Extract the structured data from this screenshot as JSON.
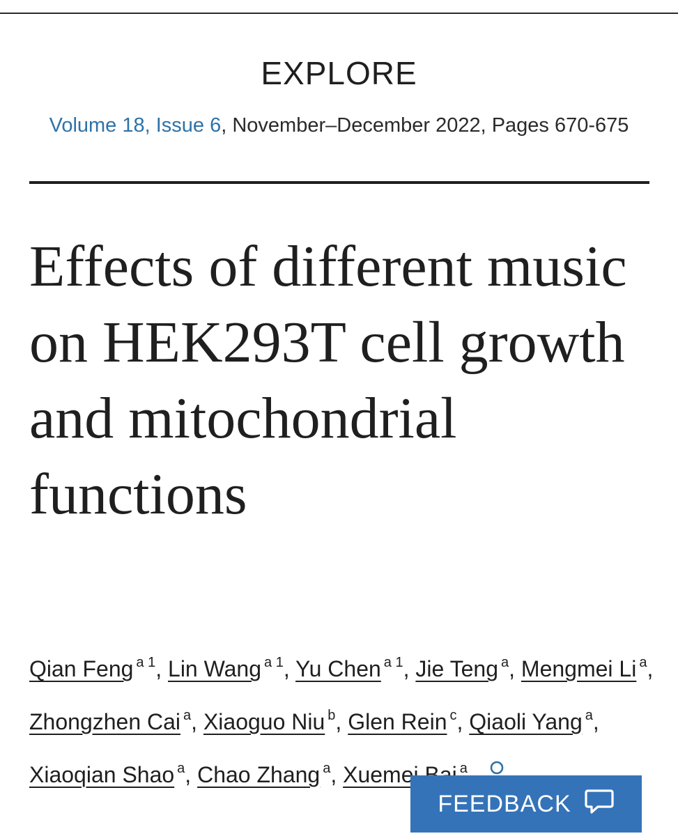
{
  "journal": {
    "name": "EXPLORE"
  },
  "issue": {
    "volume_link": "Volume 18, Issue 6",
    "rest": ", November–December 2022, Pages 670-675"
  },
  "article": {
    "title": "Effects of different music on HEK293T cell growth and mitochondrial functions"
  },
  "authors": [
    {
      "name": "Qian Feng",
      "aff": "a 1"
    },
    {
      "name": "Lin Wang",
      "aff": "a 1"
    },
    {
      "name": "Yu Chen",
      "aff": "a 1"
    },
    {
      "name": "Jie Teng",
      "aff": "a"
    },
    {
      "name": "Mengmei Li",
      "aff": "a"
    },
    {
      "name": "Zhongzhen Cai",
      "aff": "a"
    },
    {
      "name": "Xiaoguo Niu",
      "aff": "b"
    },
    {
      "name": "Glen Rein",
      "aff": "c"
    },
    {
      "name": "Qiaoli Yang",
      "aff": "a"
    },
    {
      "name": "Xiaoqian Shao",
      "aff": "a"
    },
    {
      "name": "Chao Zhang",
      "aff": "a"
    },
    {
      "name": "Xuemei Bai",
      "aff": "a"
    }
  ],
  "author_icon": "person-icon",
  "feedback": {
    "label": "FEEDBACK",
    "icon": "speech-bubble-icon",
    "color": "#3573b8"
  },
  "colors": {
    "link": "#2e72a8",
    "text": "#1f1f1f"
  }
}
